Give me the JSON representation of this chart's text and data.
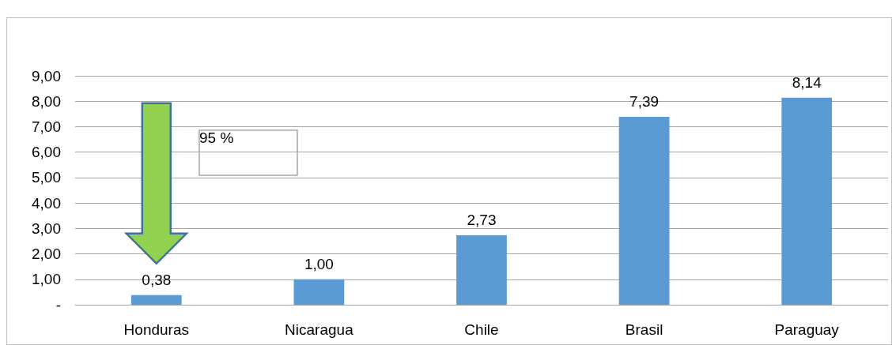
{
  "chart_data": {
    "type": "bar",
    "categories": [
      "Honduras",
      "Nicaragua",
      "Chile",
      "Brasil",
      "Paraguay"
    ],
    "values": [
      0.38,
      1.0,
      2.73,
      7.39,
      8.14
    ],
    "color": "#5b9bd5",
    "value_labels": [
      "0,38",
      "1,00",
      "2,73",
      "7,39",
      "8,14"
    ],
    "ylim": [
      0,
      9
    ],
    "yticks": [
      {
        "value": 0,
        "label": "-"
      },
      {
        "value": 1,
        "label": "1,00"
      },
      {
        "value": 2,
        "label": "2,00"
      },
      {
        "value": 3,
        "label": "3,00"
      },
      {
        "value": 4,
        "label": "4,00"
      },
      {
        "value": 5,
        "label": "5,00"
      },
      {
        "value": 6,
        "label": "6,00"
      },
      {
        "value": 7,
        "label": "7,00"
      },
      {
        "value": 8,
        "label": "8,00"
      },
      {
        "value": 9,
        "label": "9,00"
      }
    ],
    "grid": "y",
    "annotations": [
      "95 %"
    ]
  }
}
